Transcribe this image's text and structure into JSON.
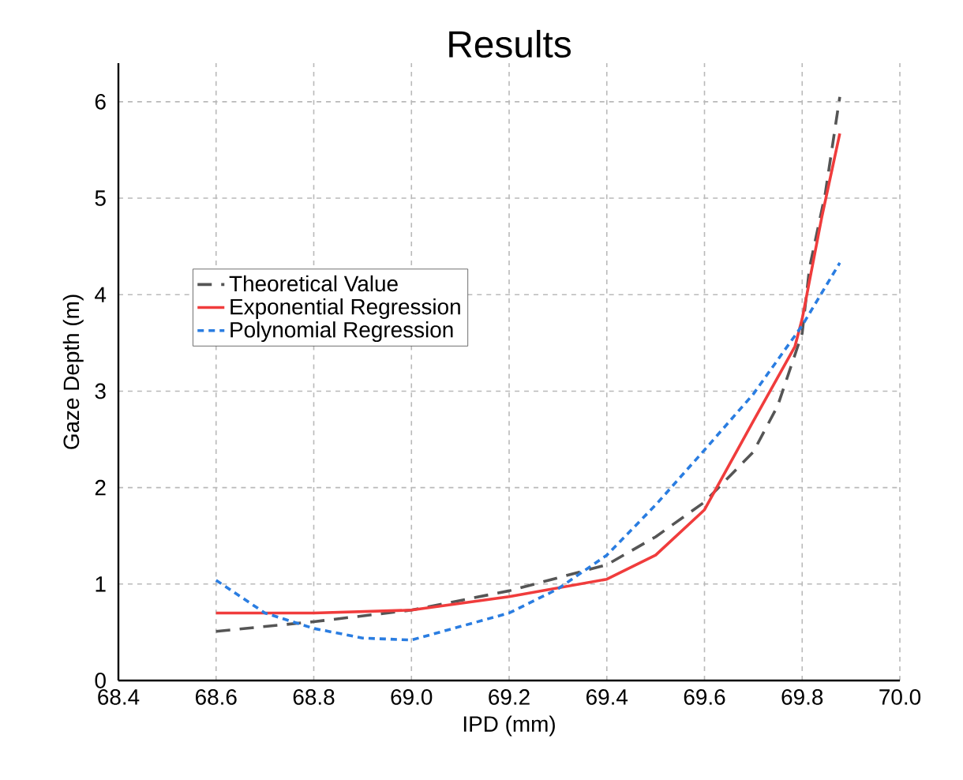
{
  "chart_data": {
    "type": "line",
    "title": "Results",
    "xlabel": "IPD (mm)",
    "ylabel": "Gaze Depth (m)",
    "xlim": [
      68.4,
      70.0
    ],
    "ylim": [
      0,
      6.4
    ],
    "xticks": [
      68.4,
      68.6,
      68.8,
      {
        "value": 69,
        "label": "69.0"
      },
      69.2,
      69.4,
      69.6,
      69.8,
      {
        "value": 70,
        "label": "70.0"
      }
    ],
    "yticks": [
      0,
      1,
      2,
      3,
      4,
      5,
      6
    ],
    "grid": true,
    "legend": "left",
    "marker": "none",
    "series": [
      {
        "name": "Theoretical Value",
        "color": "#555555",
        "line_style": "dashed",
        "x": [
          68.6,
          68.8,
          69.0,
          69.2,
          69.4,
          69.5,
          69.6,
          69.7,
          69.75,
          69.8,
          69.815,
          69.847,
          69.877
        ],
        "values": [
          0.51,
          0.61,
          0.73,
          0.93,
          1.2,
          1.49,
          1.85,
          2.37,
          2.85,
          3.6,
          4.28,
          5.04,
          6.05
        ]
      },
      {
        "name": "Exponential Regression",
        "color": "#f03c3c",
        "line_style": "solid",
        "x": [
          68.6,
          68.8,
          69.0,
          69.1,
          69.2,
          69.4,
          69.5,
          69.6,
          69.7,
          69.785,
          69.8,
          69.84,
          69.877
        ],
        "values": [
          0.7,
          0.7,
          0.73,
          0.8,
          0.87,
          1.05,
          1.3,
          1.77,
          2.69,
          3.46,
          3.75,
          4.8,
          5.67
        ]
      },
      {
        "name": "Polynomial Regression",
        "color": "#2a7de1",
        "line_style": "dotted",
        "x": [
          68.6,
          68.7,
          68.8,
          68.9,
          69.0,
          69.1,
          69.2,
          69.3,
          69.4,
          69.5,
          69.6,
          69.7,
          69.8,
          69.877
        ],
        "values": [
          1.04,
          0.7,
          0.54,
          0.44,
          0.42,
          0.56,
          0.7,
          0.95,
          1.3,
          1.82,
          2.39,
          2.97,
          3.68,
          4.33
        ]
      }
    ]
  }
}
